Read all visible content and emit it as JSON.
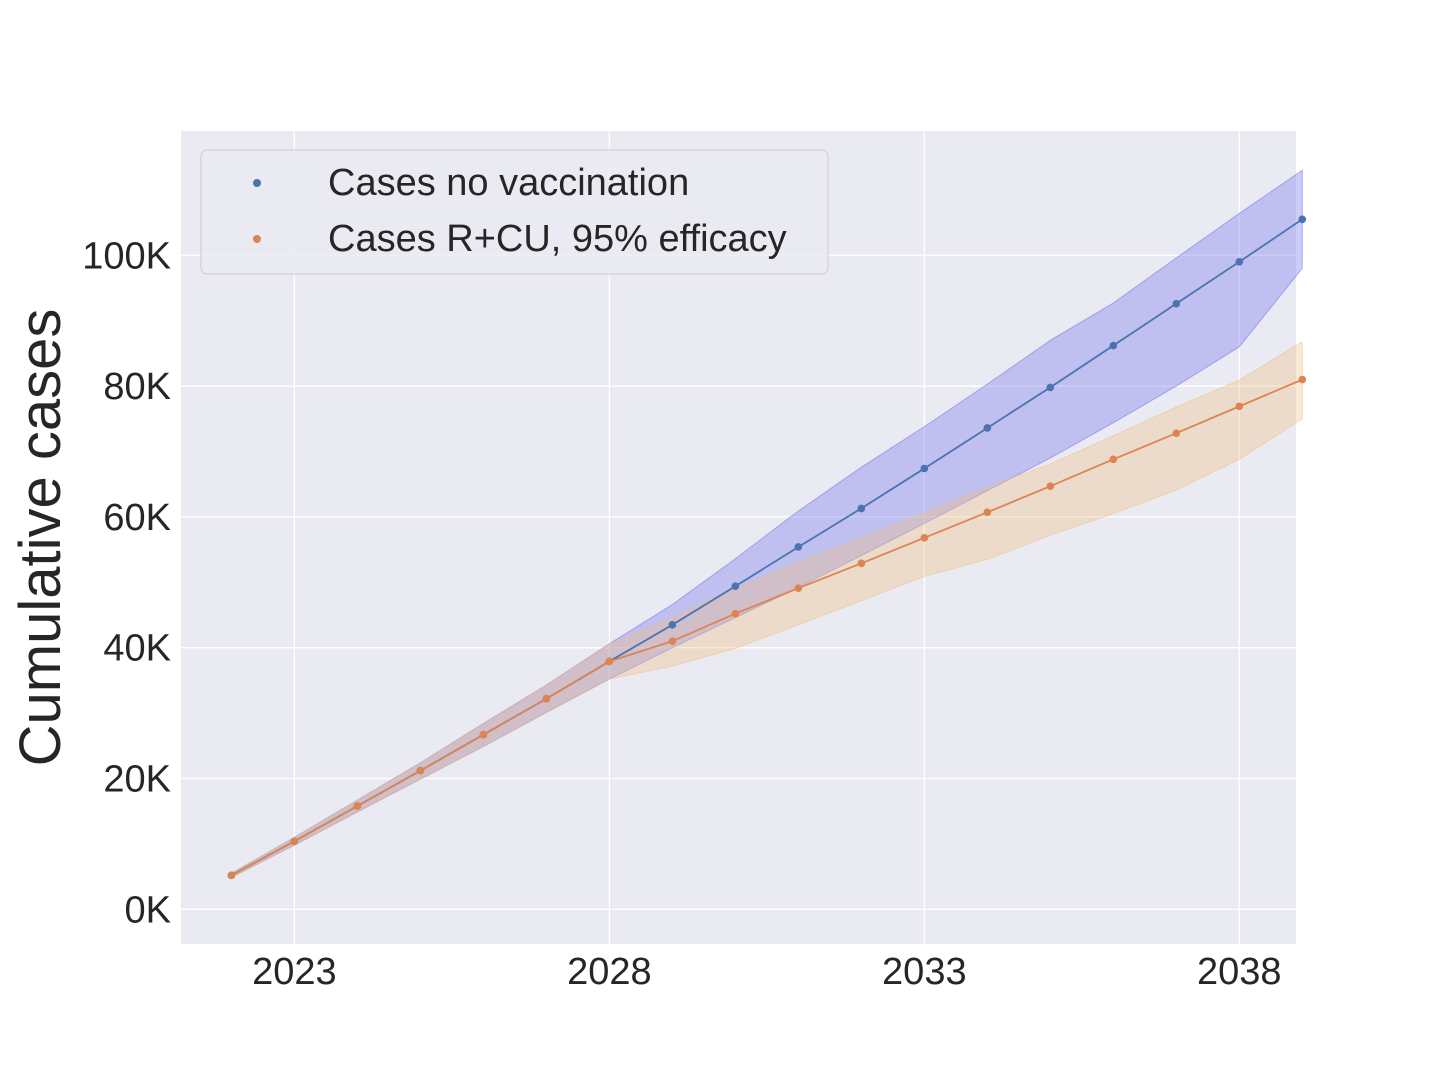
{
  "chart_data": {
    "type": "line",
    "xlabel": "",
    "ylabel": "Cumulative cases",
    "xlim": [
      2021.2,
      2038.9
    ],
    "ylim": [
      -5300,
      119000
    ],
    "x_ticks": [
      2023,
      2028,
      2033,
      2038
    ],
    "y_ticks": [
      0,
      20000,
      40000,
      60000,
      80000,
      100000
    ],
    "y_tick_labels": [
      "0K",
      "20K",
      "40K",
      "60K",
      "80K",
      "100K"
    ],
    "grid": true,
    "legend_position": "top-left",
    "x": [
      2022,
      2023,
      2024,
      2025,
      2026,
      2027,
      2028,
      2029,
      2030,
      2031,
      2032,
      2033,
      2034,
      2035,
      2036,
      2037,
      2038,
      2039
    ],
    "series": [
      {
        "name": "Cases no vaccination",
        "color": "#4c72b0",
        "band_color": "#7070ee",
        "values": [
          5200,
          10400,
          15800,
          21200,
          26700,
          32200,
          37900,
          43500,
          49400,
          55400,
          61300,
          67400,
          73600,
          79800,
          86200,
          92600,
          99000,
          105500
        ],
        "lower": [
          4900,
          9800,
          14900,
          19900,
          24900,
          30100,
          35200,
          40000,
          44600,
          49200,
          54100,
          59000,
          64000,
          69000,
          74400,
          80000,
          86000,
          98000
        ],
        "upper": [
          5500,
          11000,
          16700,
          22400,
          28400,
          34300,
          40600,
          46600,
          53600,
          60900,
          67600,
          73800,
          80300,
          87000,
          92700,
          99600,
          106400,
          113000
        ]
      },
      {
        "name": "Cases R+CU, 95% efficacy",
        "color": "#dd8452",
        "band_color": "#f0c080",
        "values": [
          5200,
          10400,
          15800,
          21200,
          26700,
          32200,
          37900,
          41000,
          45200,
          49100,
          52900,
          56800,
          60700,
          64700,
          68800,
          72800,
          76900,
          81000
        ],
        "lower": [
          4900,
          9800,
          14900,
          19900,
          24900,
          30100,
          35200,
          37200,
          39900,
          43500,
          47200,
          50900,
          53500,
          57200,
          60500,
          64100,
          68800,
          75000
        ],
        "upper": [
          5500,
          11000,
          16700,
          22400,
          28400,
          34300,
          40600,
          44600,
          49100,
          53100,
          56800,
          60600,
          64600,
          68100,
          72400,
          76800,
          80900,
          86800
        ]
      }
    ]
  }
}
